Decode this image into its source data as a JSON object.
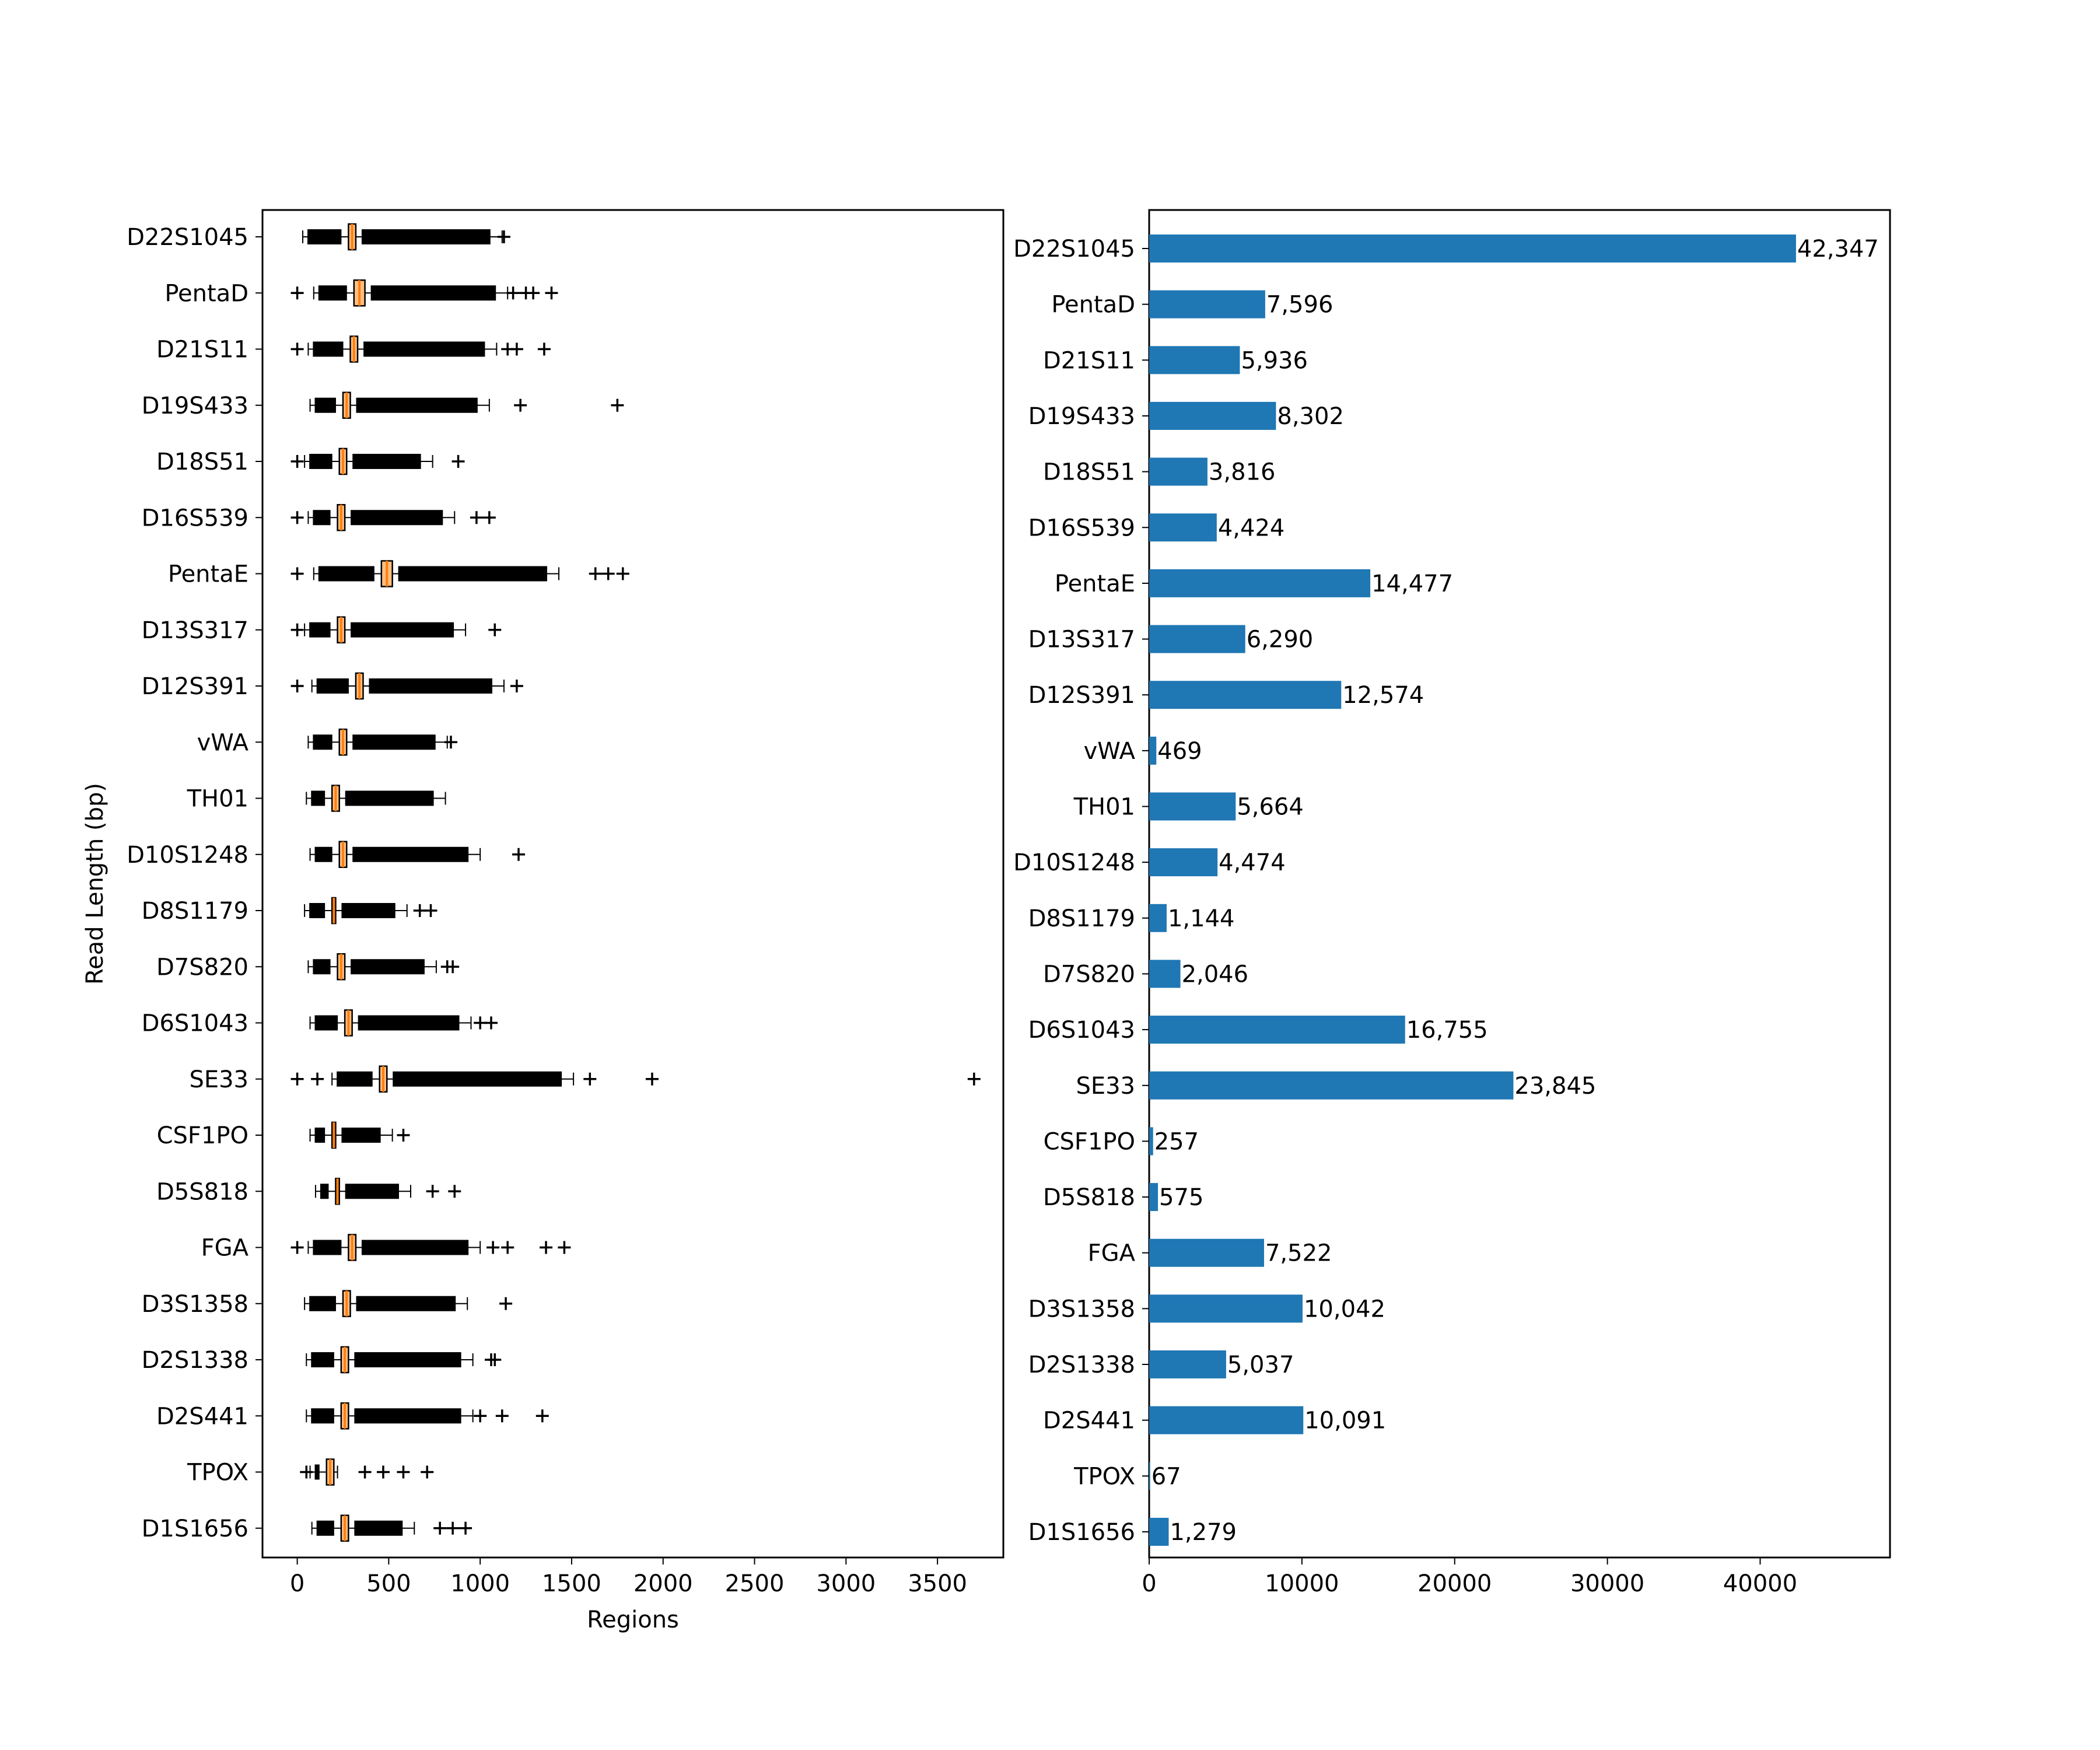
{
  "colors": {
    "bar": "#1f77b4",
    "median": "#ff7f0e",
    "box_face": "#ffbe82",
    "ink": "#000000",
    "background": "#ffffff"
  },
  "chart_data": [
    {
      "type": "box",
      "orientation": "horizontal",
      "xlabel": "Regions",
      "ylabel": "Read Length (bp)",
      "xlim": [
        -190,
        3860
      ],
      "xticks": [
        0,
        500,
        1000,
        1500,
        2000,
        2500,
        3000,
        3500
      ],
      "categories": [
        "D22S1045",
        "PentaD",
        "D21S11",
        "D19S433",
        "D18S51",
        "D16S539",
        "PentaE",
        "D13S317",
        "D12S391",
        "vWA",
        "TH01",
        "D10S1248",
        "D8S1179",
        "D7S820",
        "D6S1043",
        "SE33",
        "CSF1PO",
        "D5S818",
        "FGA",
        "D3S1358",
        "D2S1338",
        "D2S441",
        "TPOX",
        "D1S1656"
      ],
      "boxes": [
        {
          "whisker_low": 30,
          "q1": 280,
          "median": 300,
          "q3": 320,
          "whisker_high": 1120,
          "outliers": [
            1130
          ]
        },
        {
          "whisker_low": 90,
          "q1": 310,
          "median": 340,
          "q3": 370,
          "whisker_high": 1150,
          "outliers": [
            0,
            1180,
            1250,
            1290,
            1390
          ]
        },
        {
          "whisker_low": 60,
          "q1": 290,
          "median": 310,
          "q3": 330,
          "whisker_high": 1090,
          "outliers": [
            0,
            1150,
            1200,
            1350
          ]
        },
        {
          "whisker_low": 70,
          "q1": 250,
          "median": 270,
          "q3": 290,
          "whisker_high": 1050,
          "outliers": [
            1220,
            1750
          ]
        },
        {
          "whisker_low": 40,
          "q1": 230,
          "median": 250,
          "q3": 270,
          "whisker_high": 740,
          "outliers": [
            0,
            880
          ]
        },
        {
          "whisker_low": 60,
          "q1": 220,
          "median": 240,
          "q3": 260,
          "whisker_high": 860,
          "outliers": [
            0,
            980,
            1050
          ]
        },
        {
          "whisker_low": 90,
          "q1": 460,
          "median": 490,
          "q3": 520,
          "whisker_high": 1430,
          "outliers": [
            0,
            1630,
            1700,
            1780
          ]
        },
        {
          "whisker_low": 40,
          "q1": 220,
          "median": 240,
          "q3": 260,
          "whisker_high": 920,
          "outliers": [
            0,
            1080
          ]
        },
        {
          "whisker_low": 80,
          "q1": 320,
          "median": 340,
          "q3": 360,
          "whisker_high": 1130,
          "outliers": [
            0,
            1200
          ]
        },
        {
          "whisker_low": 60,
          "q1": 230,
          "median": 250,
          "q3": 270,
          "whisker_high": 820,
          "outliers": [
            840
          ]
        },
        {
          "whisker_low": 50,
          "q1": 190,
          "median": 210,
          "q3": 230,
          "whisker_high": 810,
          "outliers": []
        },
        {
          "whisker_low": 70,
          "q1": 230,
          "median": 250,
          "q3": 270,
          "whisker_high": 1000,
          "outliers": [
            1210
          ]
        },
        {
          "whisker_low": 40,
          "q1": 190,
          "median": 200,
          "q3": 210,
          "whisker_high": 600,
          "outliers": [
            670,
            730
          ]
        },
        {
          "whisker_low": 60,
          "q1": 220,
          "median": 240,
          "q3": 260,
          "whisker_high": 760,
          "outliers": [
            820,
            850
          ]
        },
        {
          "whisker_low": 70,
          "q1": 260,
          "median": 280,
          "q3": 300,
          "whisker_high": 950,
          "outliers": [
            1000,
            1060
          ]
        },
        {
          "whisker_low": 190,
          "q1": 450,
          "median": 470,
          "q3": 490,
          "whisker_high": 1510,
          "outliers": [
            0,
            110,
            1600,
            1940,
            3700
          ]
        },
        {
          "whisker_low": 70,
          "q1": 190,
          "median": 200,
          "q3": 210,
          "whisker_high": 520,
          "outliers": [
            580
          ]
        },
        {
          "whisker_low": 100,
          "q1": 210,
          "median": 220,
          "q3": 230,
          "whisker_high": 620,
          "outliers": [
            740,
            860
          ]
        },
        {
          "whisker_low": 60,
          "q1": 280,
          "median": 300,
          "q3": 320,
          "whisker_high": 1000,
          "outliers": [
            0,
            1070,
            1150,
            1360,
            1460
          ]
        },
        {
          "whisker_low": 40,
          "q1": 250,
          "median": 270,
          "q3": 290,
          "whisker_high": 930,
          "outliers": [
            1140
          ]
        },
        {
          "whisker_low": 50,
          "q1": 240,
          "median": 260,
          "q3": 280,
          "whisker_high": 960,
          "outliers": [
            1060,
            1080
          ]
        },
        {
          "whisker_low": 50,
          "q1": 240,
          "median": 260,
          "q3": 280,
          "whisker_high": 960,
          "outliers": [
            1000,
            1120,
            1340
          ]
        },
        {
          "whisker_low": 70,
          "q1": 160,
          "median": 180,
          "q3": 200,
          "whisker_high": 220,
          "outliers": [
            50,
            370,
            470,
            580,
            710
          ]
        },
        {
          "whisker_low": 80,
          "q1": 240,
          "median": 260,
          "q3": 280,
          "whisker_high": 640,
          "outliers": [
            780,
            850,
            920
          ]
        }
      ]
    },
    {
      "type": "bar",
      "orientation": "horizontal",
      "xlim": [
        0,
        48500
      ],
      "xticks": [
        0,
        10000,
        20000,
        30000,
        40000
      ],
      "categories": [
        "D22S1045",
        "PentaD",
        "D21S11",
        "D19S433",
        "D18S51",
        "D16S539",
        "PentaE",
        "D13S317",
        "D12S391",
        "vWA",
        "TH01",
        "D10S1248",
        "D8S1179",
        "D7S820",
        "D6S1043",
        "SE33",
        "CSF1PO",
        "D5S818",
        "FGA",
        "D3S1358",
        "D2S1338",
        "D2S441",
        "TPOX",
        "D1S1656"
      ],
      "values": [
        42347,
        7596,
        5936,
        8302,
        3816,
        4424,
        14477,
        6290,
        12574,
        469,
        5664,
        4474,
        1144,
        2046,
        16755,
        23845,
        257,
        575,
        7522,
        10042,
        5037,
        10091,
        67,
        1279
      ],
      "value_labels": [
        "42,347",
        "7,596",
        "5,936",
        "8,302",
        "3,816",
        "4,424",
        "14,477",
        "6,290",
        "12,574",
        "469",
        "5,664",
        "4,474",
        "1,144",
        "2,046",
        "16,755",
        "23,845",
        "257",
        "575",
        "7,522",
        "10,042",
        "5,037",
        "10,091",
        "67",
        "1,279"
      ]
    }
  ]
}
